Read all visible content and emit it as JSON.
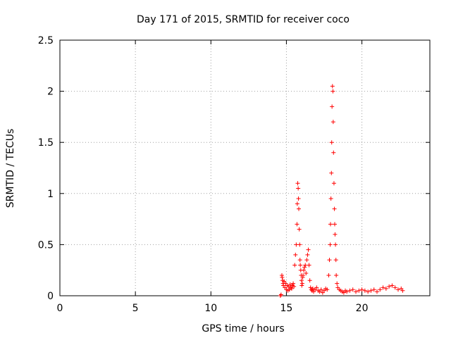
{
  "chart_data": {
    "type": "scatter",
    "title": "Day 171 of 2015, SRMTID for receiver coco",
    "xlabel": "GPS time / hours",
    "ylabel": "SRMTID / TECUs",
    "xlim": [
      0,
      24.5
    ],
    "ylim": [
      0,
      2.5
    ],
    "xticks": [
      0,
      5,
      10,
      15,
      20
    ],
    "xtick_labels": [
      "0",
      "5",
      "10",
      "15",
      "20"
    ],
    "yticks": [
      0,
      0.5,
      1,
      1.5,
      2,
      2.5
    ],
    "ytick_labels": [
      "0",
      "0.5",
      "1",
      "1.5",
      "2",
      "2.5"
    ],
    "grid": true,
    "marker": "+",
    "marker_color": "#ff0000",
    "series": [
      {
        "name": "SRMTID",
        "x": [
          14.6,
          14.65,
          14.7,
          14.72,
          14.75,
          14.78,
          14.8,
          14.85,
          14.9,
          14.95,
          15.0,
          15.05,
          15.1,
          15.15,
          15.2,
          15.25,
          15.3,
          15.35,
          15.4,
          15.45,
          15.5,
          15.55,
          15.6,
          15.65,
          15.7,
          15.72,
          15.75,
          15.78,
          15.8,
          15.82,
          15.85,
          15.88,
          15.9,
          15.92,
          15.95,
          15.98,
          16.0,
          16.02,
          16.05,
          16.08,
          16.1,
          16.15,
          16.2,
          16.25,
          16.3,
          16.35,
          16.4,
          16.45,
          16.5,
          16.55,
          16.6,
          16.65,
          16.7,
          16.75,
          16.8,
          16.9,
          17.0,
          17.1,
          17.2,
          17.3,
          17.4,
          17.5,
          17.6,
          17.7,
          17.8,
          17.85,
          17.9,
          17.92,
          17.95,
          17.98,
          18.0,
          18.02,
          18.05,
          18.08,
          18.1,
          18.12,
          18.15,
          18.18,
          18.2,
          18.22,
          18.25,
          18.28,
          18.3,
          18.35,
          18.4,
          18.5,
          18.6,
          18.7,
          18.8,
          18.9,
          19.0,
          19.2,
          19.4,
          19.6,
          19.8,
          20.0,
          20.2,
          20.4,
          20.6,
          20.8,
          21.0,
          21.2,
          21.4,
          21.6,
          21.8,
          22.0,
          22.2,
          22.4,
          22.6,
          22.7
        ],
        "y": [
          0.0,
          0.01,
          0.2,
          0.18,
          0.15,
          0.12,
          0.1,
          0.14,
          0.08,
          0.12,
          0.06,
          0.1,
          0.05,
          0.09,
          0.06,
          0.11,
          0.08,
          0.07,
          0.1,
          0.12,
          0.09,
          0.3,
          0.4,
          0.5,
          0.7,
          0.9,
          1.1,
          1.05,
          0.95,
          0.85,
          0.65,
          0.5,
          0.35,
          0.3,
          0.25,
          0.2,
          0.15,
          0.1,
          0.12,
          0.18,
          0.2,
          0.25,
          0.28,
          0.3,
          0.22,
          0.35,
          0.4,
          0.45,
          0.3,
          0.15,
          0.08,
          0.06,
          0.05,
          0.07,
          0.04,
          0.06,
          0.08,
          0.05,
          0.04,
          0.06,
          0.03,
          0.05,
          0.07,
          0.06,
          0.2,
          0.35,
          0.5,
          0.7,
          0.95,
          1.2,
          1.5,
          1.85,
          2.05,
          2.0,
          1.7,
          1.4,
          1.1,
          0.85,
          0.7,
          0.6,
          0.5,
          0.35,
          0.2,
          0.12,
          0.08,
          0.06,
          0.05,
          0.04,
          0.03,
          0.05,
          0.04,
          0.05,
          0.06,
          0.04,
          0.05,
          0.06,
          0.05,
          0.04,
          0.05,
          0.06,
          0.04,
          0.06,
          0.08,
          0.07,
          0.09,
          0.1,
          0.08,
          0.06,
          0.07,
          0.05
        ]
      }
    ]
  }
}
